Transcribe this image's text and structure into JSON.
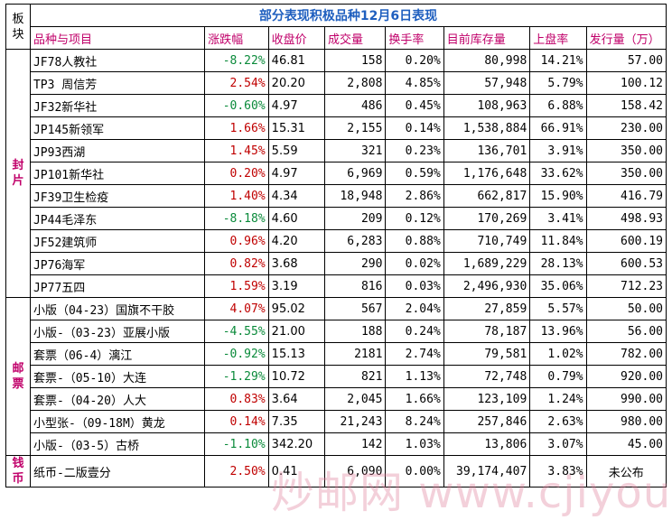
{
  "title": "部分表现积极品种12月6日表现",
  "headers": {
    "block": "板块",
    "name": "品种与项目",
    "change": "涨跌幅",
    "close": "收盘价",
    "volume": "成交量",
    "turnover": "换手率",
    "stock": "目前库存量",
    "listing_rate": "上盘率",
    "issue": "发行量（万）"
  },
  "groups": [
    {
      "label": "封片",
      "rows": [
        {
          "name": "JF78人教社",
          "change": "-8.22%",
          "close": "46.81",
          "volume": "158",
          "turnover": "0.20%",
          "stock": "80,998",
          "listing": "14.21%",
          "issue": "57.00",
          "dir": "neg"
        },
        {
          "name": "TP3 周信芳",
          "change": "2.54%",
          "close": "20.20",
          "volume": "2,808",
          "turnover": "4.85%",
          "stock": "57,948",
          "listing": "5.79%",
          "issue": "100.12",
          "dir": "pos"
        },
        {
          "name": "JF32新华社",
          "change": "-0.60%",
          "close": "4.97",
          "volume": "486",
          "turnover": "0.45%",
          "stock": "108,963",
          "listing": "6.88%",
          "issue": "158.42",
          "dir": "neg"
        },
        {
          "name": "JP145新领军",
          "change": "1.66%",
          "close": "15.31",
          "volume": "2,155",
          "turnover": "0.14%",
          "stock": "1,538,884",
          "listing": "66.91%",
          "issue": "230.00",
          "dir": "pos"
        },
        {
          "name": "JP93西湖",
          "change": "1.45%",
          "close": "5.59",
          "volume": "321",
          "turnover": "0.23%",
          "stock": "136,701",
          "listing": "3.91%",
          "issue": "350.00",
          "dir": "pos"
        },
        {
          "name": "JP101新华社",
          "change": "0.20%",
          "close": "4.97",
          "volume": "6,969",
          "turnover": "0.59%",
          "stock": "1,176,648",
          "listing": "33.62%",
          "issue": "350.00",
          "dir": "pos"
        },
        {
          "name": "JF39卫生检疫",
          "change": "1.40%",
          "close": "4.34",
          "volume": "18,948",
          "turnover": "2.86%",
          "stock": "662,817",
          "listing": "15.90%",
          "issue": "416.79",
          "dir": "pos"
        },
        {
          "name": "JP44毛泽东",
          "change": "-8.18%",
          "close": "4.60",
          "volume": "209",
          "turnover": "0.12%",
          "stock": "170,269",
          "listing": "3.41%",
          "issue": "498.93",
          "dir": "neg"
        },
        {
          "name": "JF52建筑师",
          "change": "0.96%",
          "close": "4.20",
          "volume": "6,283",
          "turnover": "0.88%",
          "stock": "710,749",
          "listing": "11.84%",
          "issue": "600.19",
          "dir": "pos"
        },
        {
          "name": "JP76海军",
          "change": "0.82%",
          "close": "3.68",
          "volume": "290",
          "turnover": "0.02%",
          "stock": "1,689,229",
          "listing": "28.13%",
          "issue": "600.53",
          "dir": "pos"
        },
        {
          "name": "JP77五四",
          "change": "1.59%",
          "close": "3.19",
          "volume": "816",
          "turnover": "0.03%",
          "stock": "2,496,930",
          "listing": "35.06%",
          "issue": "712.23",
          "dir": "pos"
        }
      ]
    },
    {
      "label": "邮票",
      "rows": [
        {
          "name": "小版（04-23）国旗不干胶",
          "change": "4.07%",
          "close": "95.02",
          "volume": "567",
          "turnover": "2.04%",
          "stock": "27,859",
          "listing": "5.57%",
          "issue": "50.00",
          "dir": "pos"
        },
        {
          "name": "小版-（03-23）亚展小版",
          "change": "-4.55%",
          "close": "21.00",
          "volume": "188",
          "turnover": "0.24%",
          "stock": "78,187",
          "listing": "13.96%",
          "issue": "56.00",
          "dir": "neg"
        },
        {
          "name": "套票（06-4）漓江",
          "change": "-0.92%",
          "close": "15.13",
          "volume": "2181",
          "turnover": "2.74%",
          "stock": "79,581",
          "listing": "1.02%",
          "issue": "782.00",
          "dir": "neg"
        },
        {
          "name": "套票-（05-10）大连",
          "change": "-1.29%",
          "close": "10.72",
          "volume": "821",
          "turnover": "1.13%",
          "stock": "72,748",
          "listing": "0.79%",
          "issue": "920.00",
          "dir": "neg"
        },
        {
          "name": "套票-（04-20）人大",
          "change": "0.83%",
          "close": "3.64",
          "volume": "2,045",
          "turnover": "1.66%",
          "stock": "123,109",
          "listing": "1.24%",
          "issue": "990.00",
          "dir": "pos"
        },
        {
          "name": "小型张-（09-18M）黄龙",
          "change": "0.14%",
          "close": "7.35",
          "volume": "21,243",
          "turnover": "8.24%",
          "stock": "257,846",
          "listing": "2.63%",
          "issue": "980.00",
          "dir": "pos"
        },
        {
          "name": "小版-（03-5）古桥",
          "change": "-1.10%",
          "close": "342.20",
          "volume": "142",
          "turnover": "1.03%",
          "stock": "13,806",
          "listing": "3.07%",
          "issue": "45.00",
          "dir": "neg"
        }
      ]
    },
    {
      "label": "钱币",
      "rows": [
        {
          "name": "纸币-二版壹分",
          "change": "2.50%",
          "close": "0.41",
          "volume": "6,090",
          "turnover": "0.00%",
          "stock": "39,174,407",
          "listing": "3.83%",
          "issue": "未公布",
          "dir": "pos"
        }
      ]
    }
  ],
  "watermark": "炒邮网 www.cjiyou.net"
}
